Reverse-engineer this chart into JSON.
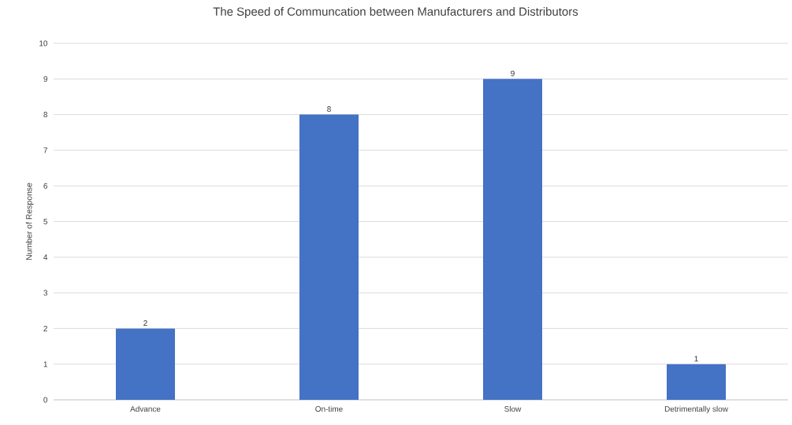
{
  "chart_data": {
    "type": "bar",
    "title": "The Speed of Communcation between Manufacturers and Distributors",
    "ylabel": "Number of Response",
    "categories": [
      "Advance",
      "On-time",
      "Slow",
      "Detrimentally slow"
    ],
    "values": [
      2,
      8,
      9,
      1
    ],
    "color": "#4472c4",
    "ylim": [
      0,
      10
    ],
    "yticks": [
      0,
      1,
      2,
      3,
      4,
      5,
      6,
      7,
      8,
      9,
      10
    ],
    "grid": "y",
    "data_labels": true
  }
}
